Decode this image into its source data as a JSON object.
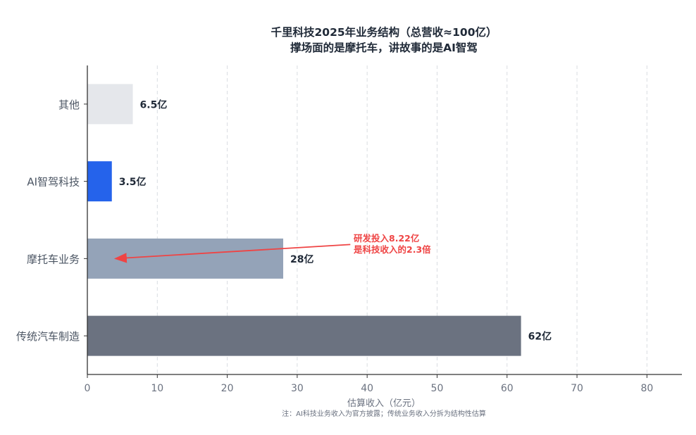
{
  "chart_data": {
    "type": "bar",
    "orientation": "horizontal",
    "title": "千里科技2025年业务结构（总营收≈100亿）",
    "subtitle": "撑场面的是摩托车，讲故事的是AI智驾",
    "xlabel": "估算收入（亿元）",
    "ylabel": "",
    "xlim": [
      0,
      85
    ],
    "xticks": [
      0,
      10,
      20,
      30,
      40,
      50,
      60,
      70,
      80
    ],
    "grid": "vertical dashed",
    "categories": [
      "其他",
      "AI智驾科技",
      "摩托车业务",
      "传统汽车制造"
    ],
    "values": [
      6.5,
      3.5,
      28,
      62
    ],
    "value_labels": [
      "6.5亿",
      "3.5亿",
      "28亿",
      "62亿"
    ],
    "colors": [
      "#e5e7eb",
      "#2563eb",
      "#94a3b8",
      "#6b7280"
    ],
    "annotation": {
      "lines": [
        "研发投入8.22亿",
        "是科技收入的2.3倍"
      ],
      "color": "#ef4444",
      "arrow_from": [
        38,
        "摩托车业务"
      ],
      "arrow_to": [
        4,
        "摩托车业务"
      ]
    },
    "note": "注：AI科技业务收入为官方披露；传统业务收入分拆为结构性估算"
  }
}
